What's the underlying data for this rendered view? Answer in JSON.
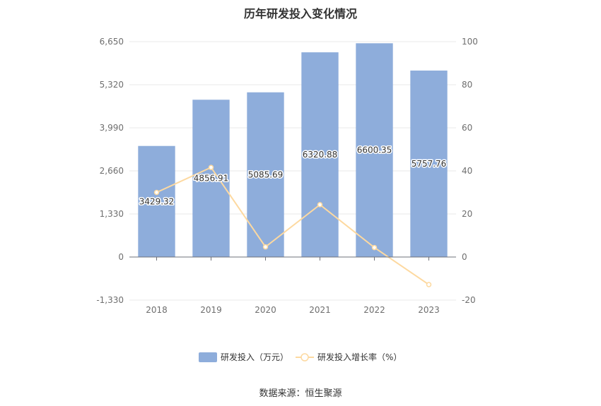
{
  "chart_data": {
    "type": "bar",
    "title": "历年研发投入变化情况",
    "categories": [
      "2018",
      "2019",
      "2020",
      "2021",
      "2022",
      "2023"
    ],
    "series": [
      {
        "name": "研发投入（万元）",
        "type": "bar",
        "axis": "left",
        "values": [
          3429.32,
          4856.91,
          5085.69,
          6320.88,
          6600.35,
          5757.76
        ],
        "data_labels": [
          "3429.32",
          "4856.91",
          "5085.69",
          "6320.88",
          "6600.35",
          "5757.76"
        ]
      },
      {
        "name": "研发投入增长率（%）",
        "type": "line",
        "axis": "right",
        "values": [
          30.0,
          41.6,
          4.7,
          24.3,
          4.4,
          -12.8
        ]
      }
    ],
    "left_axis": {
      "ylim": [
        -1330,
        6650
      ],
      "ticks": [
        "-1,330",
        "0",
        "1,330",
        "2,660",
        "3,990",
        "5,320",
        "6,650"
      ]
    },
    "right_axis": {
      "ylim": [
        -20,
        100
      ],
      "ticks": [
        "-20",
        "0",
        "20",
        "40",
        "60",
        "80",
        "100"
      ]
    },
    "grid": true,
    "legend_position": "bottom",
    "colors": {
      "bar": "#8eaddb",
      "line": "#fdd9a0",
      "grid": "#e8e8e8",
      "axis": "#999999"
    }
  },
  "source_text": "数据来源：恒生聚源"
}
